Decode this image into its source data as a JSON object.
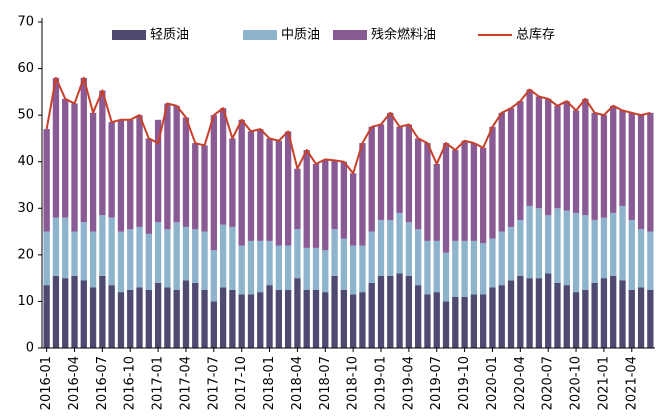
{
  "chart_data": {
    "type": "bar",
    "categories": [
      "2016-01",
      null,
      null,
      "2016-04",
      null,
      null,
      "2016-07",
      null,
      null,
      "2016-10",
      null,
      null,
      "2017-01",
      null,
      null,
      "2017-04",
      null,
      null,
      "2017-07",
      null,
      null,
      "2017-10",
      null,
      null,
      "2018-01",
      null,
      null,
      "2018-04",
      null,
      null,
      "2018-07",
      null,
      null,
      "2018-10",
      null,
      null,
      "2019-01",
      null,
      null,
      "2019-04",
      null,
      null,
      "2019-07",
      null,
      null,
      "2019-10",
      null,
      null,
      "2020-01",
      null,
      null,
      "2020-04",
      null,
      null,
      "2020-07",
      null,
      null,
      "2020-10",
      null,
      null,
      "2021-01",
      null,
      null,
      "2021-04",
      null,
      null
    ],
    "stacked": true,
    "series": [
      {
        "name": "轻质油",
        "color": "#4f4a72",
        "values": [
          13.5,
          15.5,
          15,
          15.5,
          14.5,
          13,
          15.5,
          13.5,
          12,
          12.5,
          13,
          12.5,
          14,
          13,
          12.5,
          14.5,
          14,
          12.5,
          10,
          13,
          12.5,
          11.5,
          11.5,
          12,
          13.5,
          12.5,
          12.5,
          15,
          12.5,
          12.5,
          12,
          15.5,
          12.5,
          11.5,
          12,
          14,
          15.5,
          15.5,
          16,
          15.5,
          13.5,
          11.5,
          12,
          10,
          11,
          11,
          11.5,
          11.5,
          13,
          13.5,
          14.5,
          15.5,
          15,
          15,
          16,
          14,
          13.5,
          12,
          12.5,
          14,
          15,
          15.5,
          14.5,
          12.5,
          13,
          12.5
        ]
      },
      {
        "name": "中质油",
        "color": "#8db4cc",
        "values": [
          11.5,
          12.5,
          13,
          9.5,
          12.5,
          12,
          13,
          14.5,
          13,
          13,
          13,
          12,
          13,
          12.5,
          14.5,
          11.5,
          11.5,
          12.5,
          11,
          13.5,
          13.5,
          10.5,
          11.5,
          11,
          9.5,
          9.5,
          9.5,
          10.5,
          9,
          9,
          9,
          10,
          11,
          10.5,
          10,
          11,
          12,
          12,
          13,
          11.5,
          12,
          11.5,
          11,
          10.5,
          12,
          12,
          11.5,
          11,
          10.5,
          11.5,
          11.5,
          12,
          15.5,
          15,
          12.5,
          16,
          16,
          17,
          16,
          13.5,
          13,
          13.5,
          16,
          15,
          12.5,
          12.5
        ]
      },
      {
        "name": "残余燃料油",
        "color": "#8a5a94",
        "values": [
          22,
          30,
          25.5,
          27.5,
          31,
          25.5,
          26.8,
          20.5,
          24,
          23.5,
          24,
          20.5,
          22,
          27,
          25,
          23.5,
          18.5,
          18.5,
          29,
          25,
          19,
          27,
          23.5,
          24,
          22,
          22.5,
          24.5,
          13,
          21,
          18,
          19.5,
          14.8,
          16.5,
          15.5,
          22,
          22.5,
          20.5,
          23,
          18.5,
          21,
          19.5,
          21,
          16.5,
          23.5,
          19.5,
          21.5,
          21,
          20.5,
          24,
          25.5,
          25.5,
          25.5,
          25,
          24,
          25,
          22,
          23.5,
          22,
          25,
          23,
          22,
          23,
          20.5,
          23,
          24.5,
          25.5
        ]
      },
      {
        "name": "总库存",
        "color": "#c8402a",
        "type": "line",
        "values": [
          47,
          58,
          53.5,
          52.5,
          58,
          50.5,
          55.3,
          48.5,
          49,
          49,
          50,
          45,
          44,
          52.5,
          52,
          49.5,
          44,
          43.5,
          50,
          51.5,
          45,
          49,
          46.5,
          47,
          45,
          44.5,
          46.5,
          38.5,
          42.5,
          39.5,
          40.5,
          40.3,
          40,
          37.5,
          44,
          47.5,
          48,
          50.5,
          47.5,
          48,
          45,
          44,
          39.5,
          44,
          42.5,
          44.5,
          44,
          43,
          47.5,
          50.5,
          51.5,
          53,
          55.5,
          54,
          53.5,
          52,
          53,
          51,
          53.5,
          50.5,
          50,
          52,
          51,
          50.5,
          50,
          50.5
        ]
      }
    ],
    "ylim": [
      0,
      70
    ],
    "yticks": [
      0,
      10,
      20,
      30,
      40,
      50,
      60,
      70
    ],
    "grid": false,
    "legend": "top"
  }
}
